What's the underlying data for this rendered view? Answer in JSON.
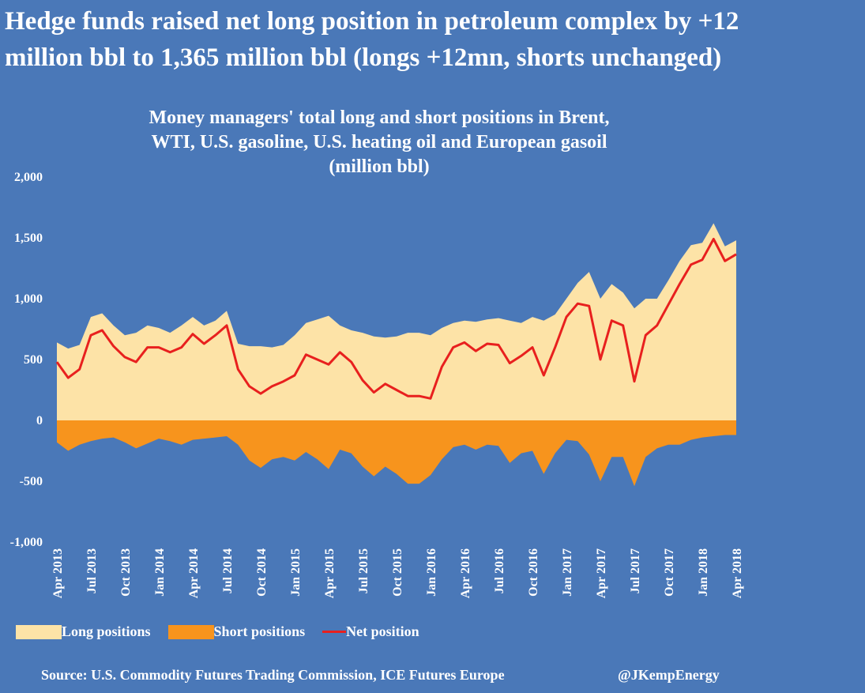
{
  "header": {
    "headline_line1": "Hedge funds raised net long position in petroleum complex by +12",
    "headline_line2": "million bbl to 1,365 million bbl (longs +12mn, shorts unchanged)"
  },
  "chart_data": {
    "type": "area",
    "title_line1": "Money managers' total long and short positions in Brent,",
    "title_line2": "WTI, U.S. gasoline, U.S. heating oil and European gasoil",
    "title_line3": "(million bbl)",
    "ylim": [
      -1000,
      2000
    ],
    "yticks": [
      "2,000",
      "1,500",
      "1,000",
      "500",
      "0",
      "-500",
      "-1,000"
    ],
    "ytick_values": [
      2000,
      1500,
      1000,
      500,
      0,
      -500,
      -1000
    ],
    "xticks": [
      "Apr 2013",
      "Jul 2013",
      "Oct 2013",
      "Jan 2014",
      "Apr 2014",
      "Jul 2014",
      "Oct 2014",
      "Jan 2015",
      "Apr 2015",
      "Jul 2015",
      "Oct 2015",
      "Jan 2016",
      "Apr 2016",
      "Jul 2016",
      "Oct 2016",
      "Jan 2017",
      "Apr 2017",
      "Jul 2017",
      "Oct 2017",
      "Jan 2018",
      "Apr 2018"
    ],
    "xlim": [
      "2013-04",
      "2018-04"
    ],
    "grid": false,
    "legend_position": "bottom",
    "series": [
      {
        "name": "Long positions",
        "color": "#fde3a7",
        "x": [
          "2013-04",
          "2013-05",
          "2013-06",
          "2013-07",
          "2013-08",
          "2013-09",
          "2013-10",
          "2013-11",
          "2013-12",
          "2014-01",
          "2014-02",
          "2014-03",
          "2014-04",
          "2014-05",
          "2014-06",
          "2014-07",
          "2014-08",
          "2014-09",
          "2014-10",
          "2014-11",
          "2014-12",
          "2015-01",
          "2015-02",
          "2015-03",
          "2015-04",
          "2015-05",
          "2015-06",
          "2015-07",
          "2015-08",
          "2015-09",
          "2015-10",
          "2015-11",
          "2015-12",
          "2016-01",
          "2016-02",
          "2016-03",
          "2016-04",
          "2016-05",
          "2016-06",
          "2016-07",
          "2016-08",
          "2016-09",
          "2016-10",
          "2016-11",
          "2016-12",
          "2017-01",
          "2017-02",
          "2017-03",
          "2017-04",
          "2017-05",
          "2017-06",
          "2017-07",
          "2017-08",
          "2017-09",
          "2017-10",
          "2017-11",
          "2017-12",
          "2018-01",
          "2018-02",
          "2018-03",
          "2018-04"
        ],
        "values": [
          640,
          590,
          620,
          850,
          880,
          780,
          700,
          720,
          780,
          760,
          720,
          780,
          850,
          780,
          820,
          900,
          630,
          610,
          610,
          600,
          620,
          700,
          800,
          830,
          860,
          780,
          740,
          720,
          690,
          680,
          690,
          720,
          720,
          700,
          760,
          800,
          820,
          810,
          830,
          840,
          820,
          800,
          850,
          820,
          870,
          1000,
          1130,
          1220,
          1000,
          1120,
          1050,
          920,
          1000,
          1000,
          1150,
          1310,
          1440,
          1460,
          1620,
          1430,
          1480
        ]
      },
      {
        "name": "Short positions",
        "color": "#f7941d",
        "x": [
          "2013-04",
          "2013-05",
          "2013-06",
          "2013-07",
          "2013-08",
          "2013-09",
          "2013-10",
          "2013-11",
          "2013-12",
          "2014-01",
          "2014-02",
          "2014-03",
          "2014-04",
          "2014-05",
          "2014-06",
          "2014-07",
          "2014-08",
          "2014-09",
          "2014-10",
          "2014-11",
          "2014-12",
          "2015-01",
          "2015-02",
          "2015-03",
          "2015-04",
          "2015-05",
          "2015-06",
          "2015-07",
          "2015-08",
          "2015-09",
          "2015-10",
          "2015-11",
          "2015-12",
          "2016-01",
          "2016-02",
          "2016-03",
          "2016-04",
          "2016-05",
          "2016-06",
          "2016-07",
          "2016-08",
          "2016-09",
          "2016-10",
          "2016-11",
          "2016-12",
          "2017-01",
          "2017-02",
          "2017-03",
          "2017-04",
          "2017-05",
          "2017-06",
          "2017-07",
          "2017-08",
          "2017-09",
          "2017-10",
          "2017-11",
          "2017-12",
          "2018-01",
          "2018-02",
          "2018-03",
          "2018-04"
        ],
        "values": [
          -180,
          -250,
          -200,
          -170,
          -150,
          -140,
          -180,
          -230,
          -190,
          -150,
          -170,
          -200,
          -160,
          -150,
          -140,
          -130,
          -200,
          -330,
          -390,
          -320,
          -300,
          -330,
          -260,
          -320,
          -400,
          -240,
          -270,
          -380,
          -460,
          -380,
          -440,
          -520,
          -520,
          -450,
          -320,
          -220,
          -200,
          -240,
          -200,
          -210,
          -350,
          -270,
          -250,
          -440,
          -270,
          -160,
          -170,
          -280,
          -500,
          -300,
          -300,
          -540,
          -300,
          -230,
          -200,
          -200,
          -160,
          -140,
          -130,
          -120,
          -120
        ]
      },
      {
        "name": "Net position",
        "color": "#e8201e",
        "x": [
          "2013-04",
          "2013-05",
          "2013-06",
          "2013-07",
          "2013-08",
          "2013-09",
          "2013-10",
          "2013-11",
          "2013-12",
          "2014-01",
          "2014-02",
          "2014-03",
          "2014-04",
          "2014-05",
          "2014-06",
          "2014-07",
          "2014-08",
          "2014-09",
          "2014-10",
          "2014-11",
          "2014-12",
          "2015-01",
          "2015-02",
          "2015-03",
          "2015-04",
          "2015-05",
          "2015-06",
          "2015-07",
          "2015-08",
          "2015-09",
          "2015-10",
          "2015-11",
          "2015-12",
          "2016-01",
          "2016-02",
          "2016-03",
          "2016-04",
          "2016-05",
          "2016-06",
          "2016-07",
          "2016-08",
          "2016-09",
          "2016-10",
          "2016-11",
          "2016-12",
          "2017-01",
          "2017-02",
          "2017-03",
          "2017-04",
          "2017-05",
          "2017-06",
          "2017-07",
          "2017-08",
          "2017-09",
          "2017-10",
          "2017-11",
          "2017-12",
          "2018-01",
          "2018-02",
          "2018-03",
          "2018-04"
        ],
        "values": [
          480,
          350,
          420,
          700,
          740,
          610,
          520,
          480,
          600,
          600,
          560,
          600,
          710,
          630,
          700,
          780,
          420,
          280,
          220,
          280,
          320,
          370,
          540,
          500,
          460,
          560,
          480,
          330,
          230,
          300,
          250,
          200,
          200,
          180,
          440,
          600,
          640,
          570,
          630,
          620,
          470,
          530,
          600,
          370,
          600,
          850,
          960,
          940,
          500,
          820,
          780,
          320,
          700,
          780,
          950,
          1120,
          1280,
          1320,
          1490,
          1310,
          1365
        ]
      }
    ]
  },
  "legend": {
    "long_label": "Long positions",
    "short_label": "Short positions",
    "net_label": "Net position"
  },
  "footer": {
    "source": "Source: U.S. Commodity Futures Trading Commission, ICE Futures Europe",
    "credit": "@JKempEnergy"
  },
  "colors": {
    "background": "#4a78b8",
    "long": "#fde3a7",
    "short": "#f7941d",
    "net": "#e8201e",
    "text": "#ffffff"
  }
}
